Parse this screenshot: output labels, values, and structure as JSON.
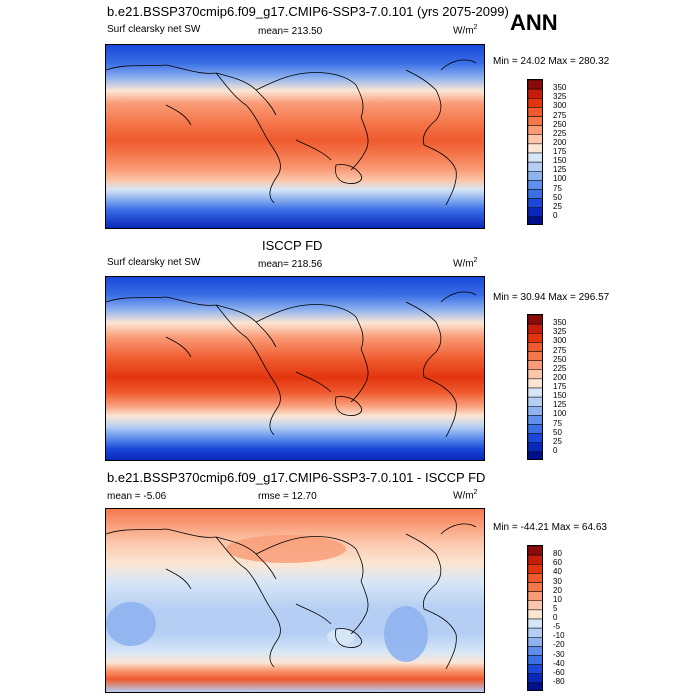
{
  "title": "b.e21.BSSP370cmip6.f09_g17.CMIP6-SSP3-7.0.101 (yrs 2075-2099)",
  "season": "ANN",
  "panels": [
    {
      "variable": "Surf clearsky net SW",
      "stat_left": "",
      "stat_center": "mean= 213.50",
      "units": "W/m",
      "units_sup": "2",
      "minmax": "Min = 24.02 Max = 280.32",
      "heading": "",
      "levels": [
        "350",
        "325",
        "300",
        "275",
        "250",
        "225",
        "200",
        "175",
        "150",
        "125",
        "100",
        "75",
        "50",
        "25",
        "0"
      ],
      "colors": [
        "#8b0a0a",
        "#c51c0b",
        "#e2350f",
        "#ef5a2e",
        "#f5784d",
        "#f99b76",
        "#fbc6aa",
        "#fbe6d4",
        "#d6e6f7",
        "#b5cef3",
        "#8fb3ef",
        "#5f8fed",
        "#3a6fe6",
        "#1a47d8",
        "#0927b8",
        "#00108a"
      ]
    },
    {
      "variable": "Surf clearsky net SW",
      "stat_left": "",
      "stat_center": "mean= 218.56",
      "units": "W/m",
      "units_sup": "2",
      "minmax": "Min = 30.94 Max = 296.57",
      "heading": "ISCCP FD",
      "levels": [
        "350",
        "325",
        "300",
        "275",
        "250",
        "225",
        "200",
        "175",
        "150",
        "125",
        "100",
        "75",
        "50",
        "25",
        "0"
      ],
      "colors": [
        "#8b0a0a",
        "#c51c0b",
        "#e2350f",
        "#ef5a2e",
        "#f5784d",
        "#f99b76",
        "#fbc6aa",
        "#fbe6d4",
        "#d6e6f7",
        "#b5cef3",
        "#8fb3ef",
        "#5f8fed",
        "#3a6fe6",
        "#1a47d8",
        "#0927b8",
        "#00108a"
      ]
    },
    {
      "variable": "",
      "stat_left": "mean = -5.06",
      "stat_center": "rmse = 12.70",
      "units": "W/m",
      "units_sup": "2",
      "minmax": "Min = -44.21 Max = 64.63",
      "heading": "b.e21.BSSP370cmip6.f09_g17.CMIP6-SSP3-7.0.101 - ISCCP FD",
      "levels": [
        "80",
        "60",
        "40",
        "30",
        "20",
        "10",
        "5",
        "0",
        "-5",
        "-10",
        "-20",
        "-30",
        "-40",
        "-60",
        "-80"
      ],
      "colors": [
        "#8b0a0a",
        "#c51c0b",
        "#e2350f",
        "#ef5a2e",
        "#f5784d",
        "#f99b76",
        "#fbc6aa",
        "#fbe6d4",
        "#d6e6f7",
        "#b5cef3",
        "#8fb3ef",
        "#5f8fed",
        "#3a6fe6",
        "#1a47d8",
        "#0927b8",
        "#00108a"
      ]
    }
  ]
}
